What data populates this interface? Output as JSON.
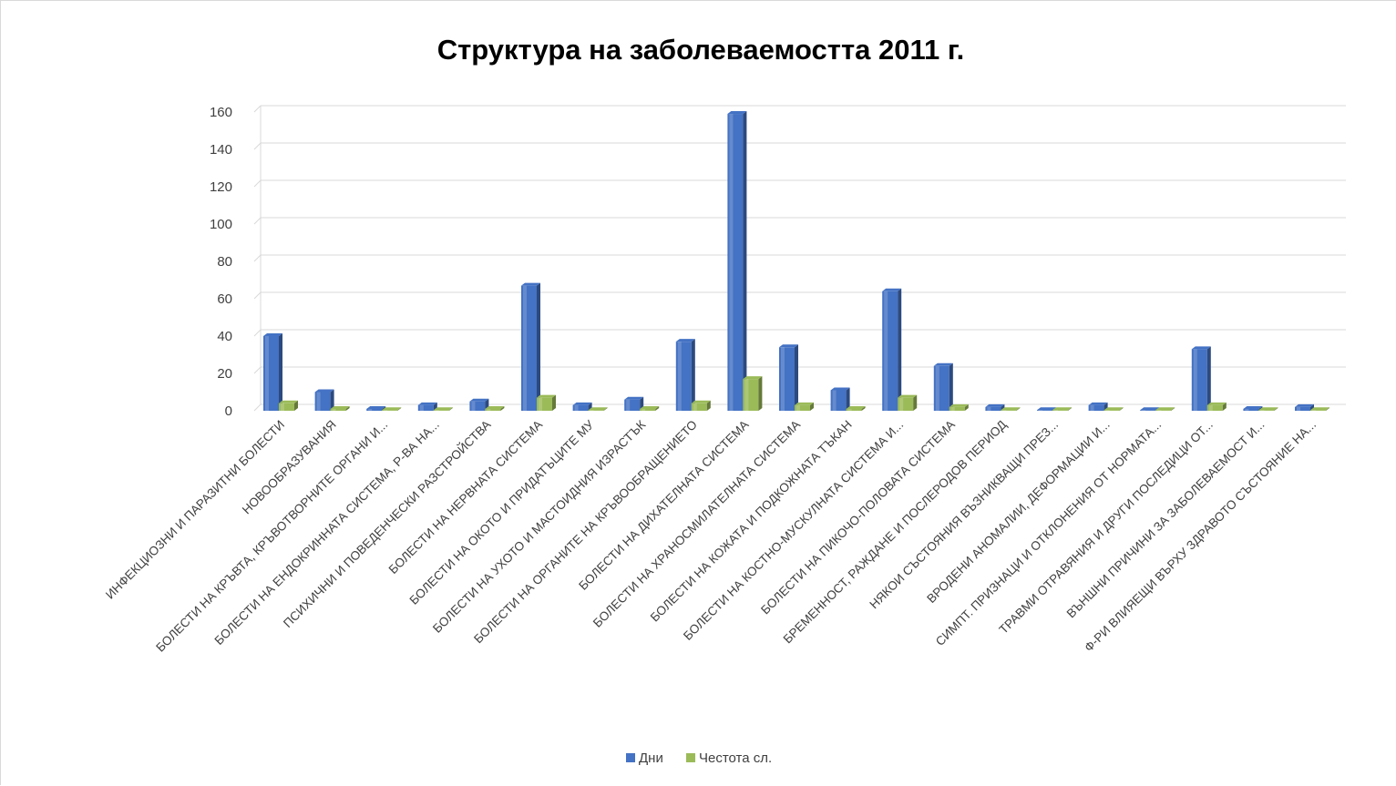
{
  "chart_data": {
    "type": "bar",
    "title": "Структура на заболеваемостта 2011 г.",
    "xlabel": "",
    "ylabel": "",
    "ylim": [
      0,
      160
    ],
    "yticks": [
      0,
      20,
      40,
      60,
      80,
      100,
      120,
      140,
      160
    ],
    "grid": true,
    "legend_position": "bottom",
    "categories": [
      "ИНФЕКЦИОЗНИ И ПАРАЗИТНИ БОЛЕСТИ",
      "НОВООБРАЗУВАНИЯ",
      "БОЛЕСТИ НА КРЪВТА, КРЪВОТВОРНИТЕ ОРГАНИ И...",
      "БОЛЕСТИ НА ЕНДОКРИННАТА СИСТЕМА, Р-ВА НА...",
      "ПСИХИЧНИ И ПОВЕДЕНЧЕСКИ РАЗСТРОЙСТВА",
      "БОЛЕСТИ НА НЕРВНАТА СИСТЕМА",
      "БОЛЕСТИ НА ОКОТО И ПРИДАТЪЦИТЕ МУ",
      "БОЛЕСТИ НА УХОТО И МАСТОИДНИЯ ИЗРАСТЪК",
      "БОЛЕСТИ НА ОРГАНИТЕ НА КРЪВООБРАЩЕНИЕТО",
      "БОЛЕСТИ НА ДИХАТЕЛНАТА СИСТЕМА",
      "БОЛЕСТИ НА ХРАНОСМИЛАТЕЛНАТА СИСТЕМА",
      "БОЛЕСТИ НА КОЖАТА И ПОДКОЖНАТА ТЪКАН",
      "БОЛЕСТИ НА КОСТНО-МУСКУЛНАТА СИСТЕМА И...",
      "БОЛЕСТИ НА ПИКОЧО-ПОЛОВАТА СИСТЕМА",
      "БРЕМЕННОСТ, РАЖДАНЕ И ПОСЛЕРОДОВ ПЕРИОД",
      "НЯКОИ СЪСТОЯНИЯ ВЪЗНИКВАЩИ ПРЕЗ...",
      "ВРОДЕНИ АНОМАЛИИ, ДЕФОРМАЦИИ И...",
      "СИМПТ. ПРИЗНАЦИ И ОТКЛОНЕНИЯ ОТ НОРМАТА...",
      "ТРАВМИ ОТРАВЯНИЯ И ДРУГИ ПОСЛЕДИЦИ ОТ...",
      "ВЪНШНИ ПРИЧИНИ ЗА ЗАБОЛЕВАЕМОСТ И...",
      "Ф-РИ ВЛИЯЕЩИ ВЪРХУ ЗДРАВОТО СЪСТОЯНИЕ НА..."
    ],
    "series": [
      {
        "name": "Дни",
        "color": "#4472c4",
        "values": [
          40,
          10,
          1,
          3,
          5,
          67,
          3,
          6,
          37,
          159,
          34,
          11,
          64,
          24,
          2,
          0,
          3,
          0,
          33,
          1,
          2
        ]
      },
      {
        "name": "Честота сл.",
        "color": "#9bbb59",
        "values": [
          4,
          1,
          0,
          0,
          1,
          7,
          0,
          1,
          4,
          17,
          3,
          1,
          7,
          2,
          0,
          0,
          0,
          0,
          3,
          0,
          0
        ]
      }
    ]
  }
}
